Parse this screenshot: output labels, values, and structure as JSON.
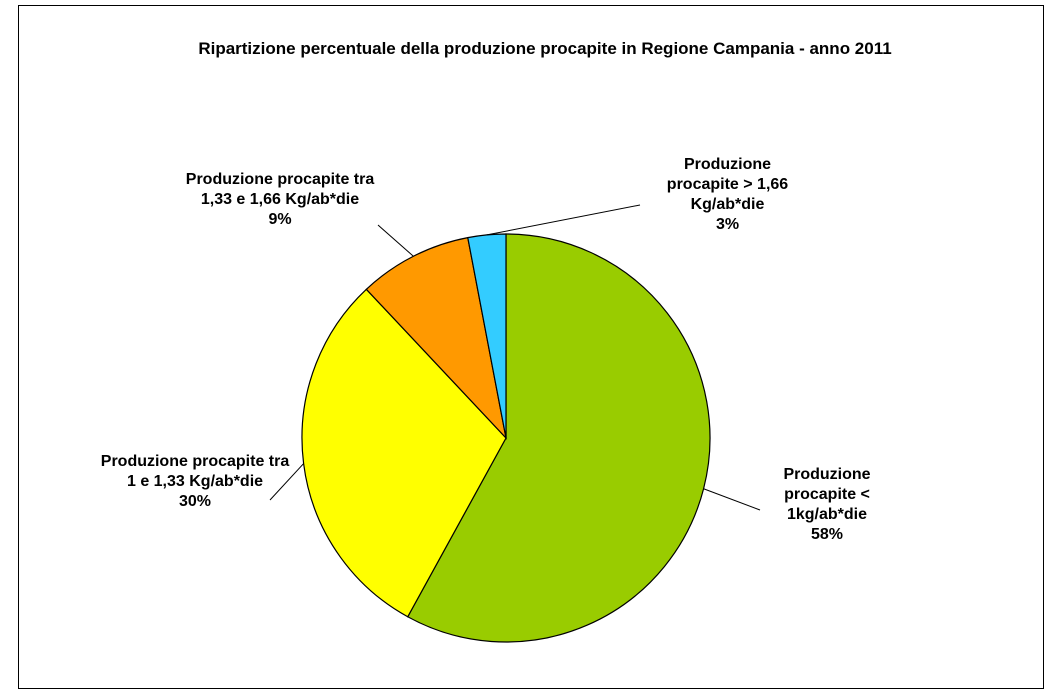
{
  "chart_data": {
    "type": "pie",
    "title": "Ripartizione percentuale della produzione procapite in Regione Campania - anno 2011",
    "categories": [
      "Produzione procapite < 1kg/ab*die",
      "Produzione procapite tra 1 e 1,33 Kg/ab*die",
      "Produzione procapite tra 1,33 e 1,66 Kg/ab*die",
      "Produzione procapite > 1,66 Kg/ab*die"
    ],
    "values": [
      58,
      30,
      9,
      3
    ],
    "value_labels": [
      "58%",
      "30%",
      "9%",
      "3%"
    ],
    "colors": [
      "#99cc00",
      "#ffff00",
      "#ff9900",
      "#33ccff"
    ]
  }
}
